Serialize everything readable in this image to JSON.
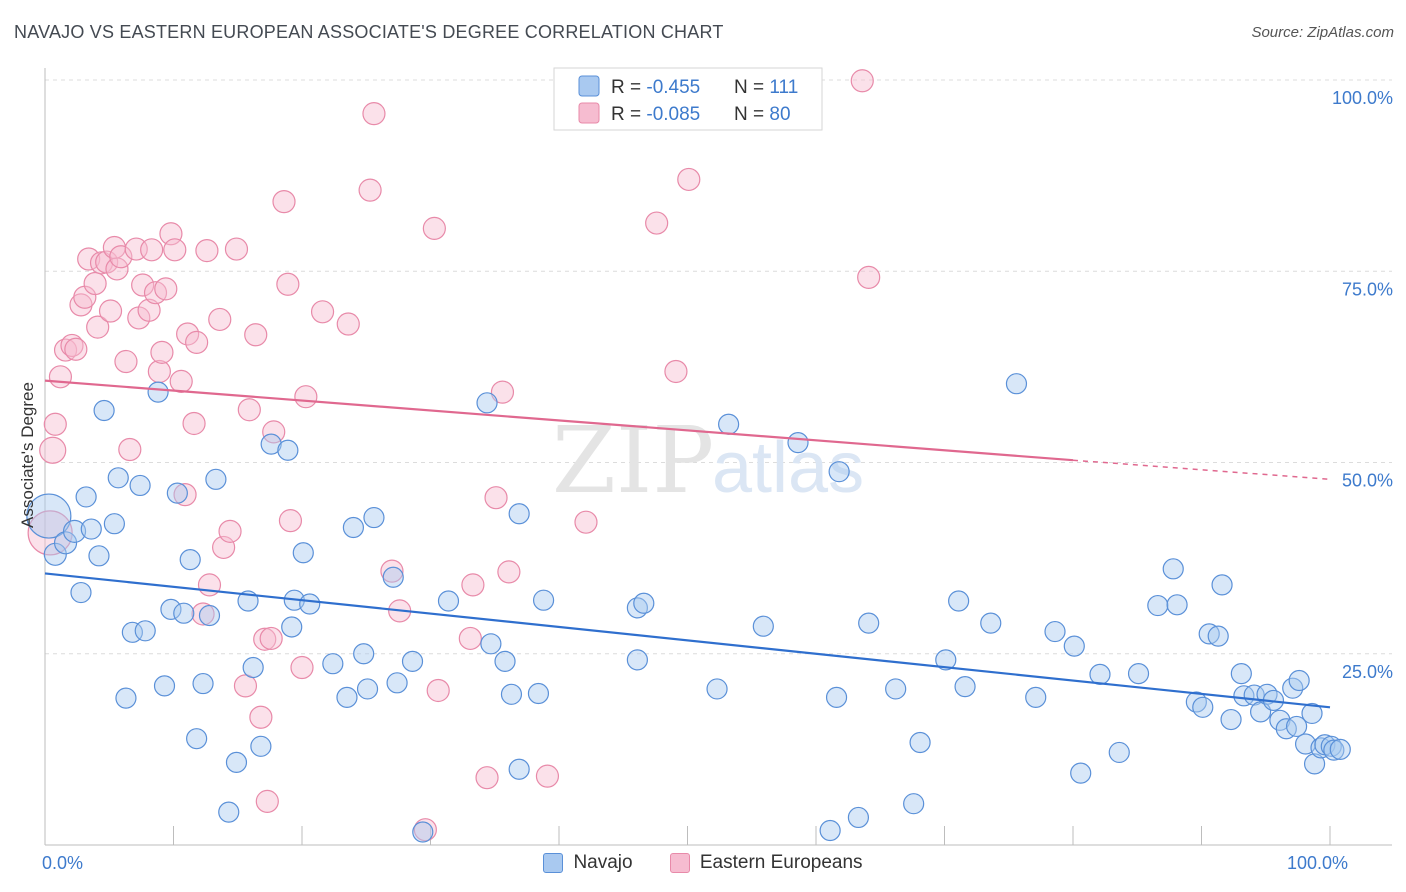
{
  "title": "NAVAJO VS EASTERN EUROPEAN ASSOCIATE'S DEGREE CORRELATION CHART",
  "source": "Source: ZipAtlas.com",
  "watermark": {
    "zip": "ZIP",
    "atlas": "atlas"
  },
  "colors": {
    "blue_fill": "#a9c9f0",
    "blue_stroke": "#5a90d8",
    "blue_line": "#2f6fce",
    "pink_fill": "#f6bcd0",
    "pink_stroke": "#e88aa9",
    "pink_line": "#e0688f",
    "tick_label": "#3d7acc",
    "grid": "#dcdcdc"
  },
  "chart_data": {
    "type": "scatter",
    "xlabel": "",
    "ylabel": "Associate's Degree",
    "xlim": [
      0,
      100
    ],
    "ylim": [
      0,
      100
    ],
    "x_tick_labels": [
      {
        "value": 0,
        "label": "0.0%"
      },
      {
        "value": 100,
        "label": "100.0%"
      }
    ],
    "y_tick_labels": [
      {
        "value": 25,
        "label": "25.0%"
      },
      {
        "value": 50,
        "label": "50.0%"
      },
      {
        "value": 75,
        "label": "75.0%"
      },
      {
        "value": 100,
        "label": "100.0%"
      }
    ],
    "grid": "horizontal-dashed",
    "legend_top": [
      {
        "r_label": "R = ",
        "r_value": "-0.455",
        "n_label": "N = ",
        "n_value": "111"
      },
      {
        "r_label": "R = ",
        "r_value": "-0.085",
        "n_label": "N = ",
        "n_value": "80"
      }
    ],
    "series": [
      {
        "name": "Navajo",
        "trend": {
          "x0": 0,
          "y0": 35.5,
          "x1": 100,
          "y1": 18.0
        },
        "points": [
          [
            0.3,
            43,
            22
          ],
          [
            0.8,
            38,
            11
          ],
          [
            1.6,
            39.5,
            11
          ],
          [
            2.3,
            41,
            11
          ],
          [
            2.8,
            33,
            10
          ],
          [
            3.2,
            45.5,
            10
          ],
          [
            3.6,
            41.3,
            10
          ],
          [
            4.2,
            37.8,
            10
          ],
          [
            4.6,
            56.8,
            10
          ],
          [
            5.4,
            42,
            10
          ],
          [
            5.7,
            48,
            10
          ],
          [
            6.3,
            19.2,
            10
          ],
          [
            6.8,
            27.8,
            10
          ],
          [
            7.4,
            47.0,
            10
          ],
          [
            7.8,
            28,
            10
          ],
          [
            8.8,
            59.2,
            10
          ],
          [
            9.3,
            20.8,
            10
          ],
          [
            9.8,
            30.8,
            10
          ],
          [
            10.3,
            46,
            10
          ],
          [
            10.8,
            30.3,
            10
          ],
          [
            11.3,
            37.3,
            10
          ],
          [
            11.8,
            13.9,
            10
          ],
          [
            12.3,
            21.1,
            10
          ],
          [
            12.8,
            30,
            10
          ],
          [
            13.3,
            47.8,
            10
          ],
          [
            14.3,
            4.3,
            10
          ],
          [
            14.9,
            10.8,
            10
          ],
          [
            15.8,
            31.9,
            10
          ],
          [
            16.2,
            23.2,
            10
          ],
          [
            16.8,
            12.9,
            10
          ],
          [
            17.6,
            52.4,
            10
          ],
          [
            18.9,
            51.6,
            10
          ],
          [
            19.2,
            28.5,
            10
          ],
          [
            19.4,
            32.0,
            10
          ],
          [
            20.1,
            38.2,
            10
          ],
          [
            20.6,
            31.5,
            10
          ],
          [
            22.4,
            23.7,
            10
          ],
          [
            23.5,
            19.3,
            10
          ],
          [
            24.0,
            41.5,
            10
          ],
          [
            24.8,
            25,
            10
          ],
          [
            25.1,
            20.4,
            10
          ],
          [
            25.6,
            42.8,
            10
          ],
          [
            27.1,
            35.0,
            10
          ],
          [
            27.4,
            21.2,
            10
          ],
          [
            28.6,
            24,
            10
          ],
          [
            29.4,
            1.7,
            10
          ],
          [
            31.4,
            31.9,
            10
          ],
          [
            34.4,
            57.8,
            10
          ],
          [
            34.7,
            26.3,
            10
          ],
          [
            35.8,
            24,
            10
          ],
          [
            36.3,
            19.7,
            10
          ],
          [
            36.9,
            9.9,
            10
          ],
          [
            36.9,
            43.3,
            10
          ],
          [
            38.4,
            19.8,
            10
          ],
          [
            38.8,
            32.0,
            10
          ],
          [
            46.1,
            24.2,
            10
          ],
          [
            46.1,
            31.0,
            10
          ],
          [
            46.6,
            31.6,
            10
          ],
          [
            52.3,
            20.4,
            10
          ],
          [
            53.2,
            55.0,
            10
          ],
          [
            55.9,
            28.6,
            10
          ],
          [
            58.6,
            52.6,
            10
          ],
          [
            61.1,
            1.9,
            10
          ],
          [
            61.6,
            19.3,
            10
          ],
          [
            61.8,
            48.8,
            10
          ],
          [
            63.3,
            3.6,
            10
          ],
          [
            64.1,
            29.0,
            10
          ],
          [
            66.2,
            20.4,
            10
          ],
          [
            67.6,
            5.4,
            10
          ],
          [
            68.1,
            13.4,
            10
          ],
          [
            70.1,
            24.2,
            10
          ],
          [
            71.1,
            31.9,
            10
          ],
          [
            71.6,
            20.7,
            10
          ],
          [
            73.6,
            29.0,
            10
          ],
          [
            75.6,
            60.3,
            10
          ],
          [
            77.1,
            19.3,
            10
          ],
          [
            78.6,
            27.9,
            10
          ],
          [
            80.1,
            26.0,
            10
          ],
          [
            80.6,
            9.4,
            10
          ],
          [
            82.1,
            22.3,
            10
          ],
          [
            83.6,
            12.1,
            10
          ],
          [
            85.1,
            22.4,
            10
          ],
          [
            86.6,
            31.3,
            10
          ],
          [
            88.1,
            31.4,
            10
          ],
          [
            87.8,
            36.1,
            10
          ],
          [
            89.6,
            18.7,
            10
          ],
          [
            90.1,
            18.0,
            10
          ],
          [
            90.6,
            27.6,
            10
          ],
          [
            91.3,
            27.3,
            10
          ],
          [
            91.6,
            34.0,
            10
          ],
          [
            92.3,
            16.4,
            10
          ],
          [
            93.1,
            22.4,
            10
          ],
          [
            93.3,
            19.5,
            10
          ],
          [
            94.1,
            19.6,
            10
          ],
          [
            94.6,
            17.4,
            10
          ],
          [
            95.1,
            19.7,
            10
          ],
          [
            95.6,
            18.9,
            10
          ],
          [
            96.1,
            16.3,
            10
          ],
          [
            96.6,
            15.2,
            10
          ],
          [
            97.1,
            20.5,
            10
          ],
          [
            97.4,
            15.5,
            10
          ],
          [
            97.6,
            21.5,
            10
          ],
          [
            98.1,
            13.2,
            10
          ],
          [
            98.6,
            17.2,
            10
          ],
          [
            98.8,
            10.6,
            10
          ],
          [
            99.3,
            12.7,
            10
          ],
          [
            99.6,
            13.1,
            10
          ],
          [
            100.1,
            12.9,
            10
          ],
          [
            100.3,
            12.4,
            10
          ],
          [
            100.8,
            12.5,
            10
          ]
        ]
      },
      {
        "name": "Eastern Europeans",
        "trend": {
          "x0": 0,
          "y0": 60.7,
          "x1": 80,
          "y1": 50.3,
          "dash_to_x": 100,
          "dash_to_y": 47.8
        },
        "points": [
          [
            0.4,
            40.8,
            22
          ],
          [
            0.6,
            51.6,
            13
          ],
          [
            0.8,
            55.0,
            11
          ],
          [
            1.2,
            61.2,
            11
          ],
          [
            1.6,
            64.7,
            11
          ],
          [
            2.1,
            65.3,
            11
          ],
          [
            2.4,
            64.8,
            11
          ],
          [
            2.8,
            70.6,
            11
          ],
          [
            3.1,
            71.6,
            11
          ],
          [
            3.4,
            76.6,
            11
          ],
          [
            3.9,
            73.4,
            11
          ],
          [
            4.1,
            67.7,
            11
          ],
          [
            4.4,
            76.1,
            11
          ],
          [
            4.8,
            76.2,
            11
          ],
          [
            5.1,
            69.8,
            11
          ],
          [
            5.4,
            78.1,
            11
          ],
          [
            5.6,
            75.3,
            11
          ],
          [
            5.9,
            76.9,
            11
          ],
          [
            6.3,
            63.2,
            11
          ],
          [
            6.6,
            51.7,
            11
          ],
          [
            7.1,
            77.9,
            11
          ],
          [
            7.3,
            68.9,
            11
          ],
          [
            7.6,
            73.2,
            11
          ],
          [
            8.1,
            69.9,
            11
          ],
          [
            8.3,
            77.8,
            11
          ],
          [
            8.6,
            72.2,
            11
          ],
          [
            8.9,
            61.9,
            11
          ],
          [
            9.1,
            64.4,
            11
          ],
          [
            9.4,
            72.7,
            11
          ],
          [
            9.8,
            79.9,
            11
          ],
          [
            10.1,
            77.8,
            11
          ],
          [
            10.6,
            60.6,
            11
          ],
          [
            10.9,
            45.8,
            11
          ],
          [
            11.1,
            66.8,
            11
          ],
          [
            11.6,
            55.1,
            11
          ],
          [
            11.8,
            65.7,
            11
          ],
          [
            12.3,
            30.2,
            11
          ],
          [
            12.6,
            77.7,
            11
          ],
          [
            12.8,
            34,
            11
          ],
          [
            13.6,
            68.7,
            11
          ],
          [
            13.9,
            38.9,
            11
          ],
          [
            14.4,
            41,
            11
          ],
          [
            14.9,
            77.9,
            11
          ],
          [
            15.6,
            20.8,
            11
          ],
          [
            15.9,
            56.9,
            11
          ],
          [
            16.4,
            66.7,
            11
          ],
          [
            16.8,
            16.7,
            11
          ],
          [
            17.1,
            26.9,
            11
          ],
          [
            17.3,
            5.7,
            11
          ],
          [
            17.6,
            27.0,
            11
          ],
          [
            17.8,
            54.0,
            11
          ],
          [
            18.6,
            84.1,
            11
          ],
          [
            18.9,
            73.3,
            11
          ],
          [
            19.1,
            42.4,
            11
          ],
          [
            20.0,
            23.2,
            11
          ],
          [
            20.3,
            58.6,
            11
          ],
          [
            21.6,
            69.7,
            11
          ],
          [
            23.6,
            68.1,
            11
          ],
          [
            25.3,
            85.6,
            11
          ],
          [
            25.6,
            95.6,
            11
          ],
          [
            27.0,
            35.8,
            11
          ],
          [
            27.6,
            30.6,
            11
          ],
          [
            29.6,
            2.0,
            11
          ],
          [
            30.3,
            80.6,
            11
          ],
          [
            30.6,
            20.2,
            11
          ],
          [
            33.1,
            27.0,
            11
          ],
          [
            33.3,
            34.0,
            11
          ],
          [
            34.4,
            8.8,
            11
          ],
          [
            35.1,
            45.4,
            11
          ],
          [
            35.6,
            59.2,
            11
          ],
          [
            36.1,
            35.7,
            11
          ],
          [
            39.1,
            9.0,
            11
          ],
          [
            42.1,
            42.2,
            11
          ],
          [
            47.6,
            81.3,
            11
          ],
          [
            49.1,
            61.9,
            11
          ],
          [
            50.1,
            87.0,
            11
          ],
          [
            63.6,
            99.9,
            11
          ],
          [
            64.1,
            74.2,
            11
          ]
        ]
      }
    ]
  }
}
